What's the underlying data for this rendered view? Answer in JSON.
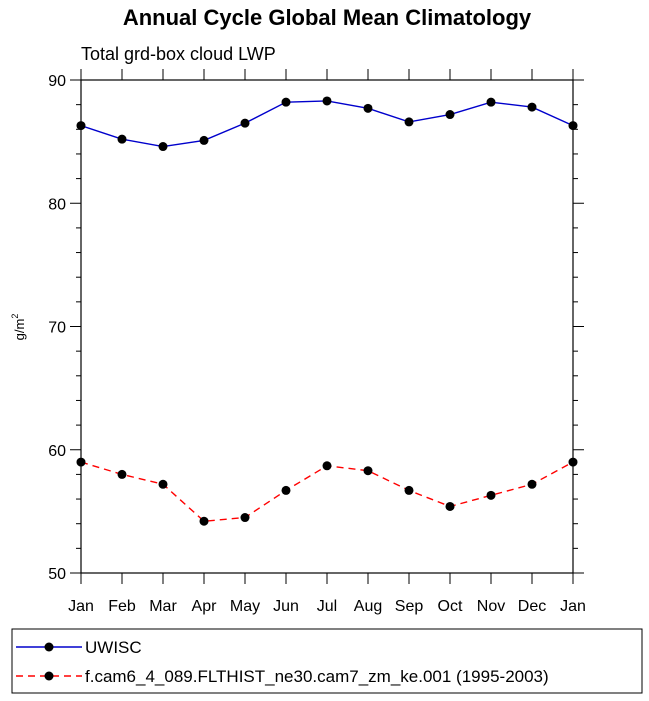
{
  "chart_data": {
    "type": "line",
    "title": "Annual Cycle Global Mean Climatology",
    "subtitle": "Total grd-box cloud LWP",
    "ylabel": "g/m",
    "ylabel_superscript": "2",
    "ylim": [
      50,
      90
    ],
    "yticks": [
      50,
      60,
      70,
      80,
      90
    ],
    "categories": [
      "Jan",
      "Feb",
      "Mar",
      "Apr",
      "May",
      "Jun",
      "Jul",
      "Aug",
      "Sep",
      "Oct",
      "Nov",
      "Dec",
      "Jan"
    ],
    "series": [
      {
        "name": "UWISC",
        "color": "#0000cc",
        "dash": "solid",
        "values": [
          86.3,
          85.2,
          84.6,
          85.1,
          86.5,
          88.2,
          88.3,
          87.7,
          86.6,
          87.2,
          88.2,
          87.8,
          86.3
        ]
      },
      {
        "name": "f.cam6_4_089.FLTHIST_ne30.cam7_zm_ke.001 (1995-2003)",
        "color": "#ff0000",
        "dash": "dashed",
        "values": [
          59.0,
          58.0,
          57.2,
          54.2,
          54.5,
          56.7,
          58.7,
          58.3,
          56.7,
          55.4,
          56.3,
          57.2,
          59.0
        ]
      }
    ],
    "legend_position": "bottom-left"
  }
}
